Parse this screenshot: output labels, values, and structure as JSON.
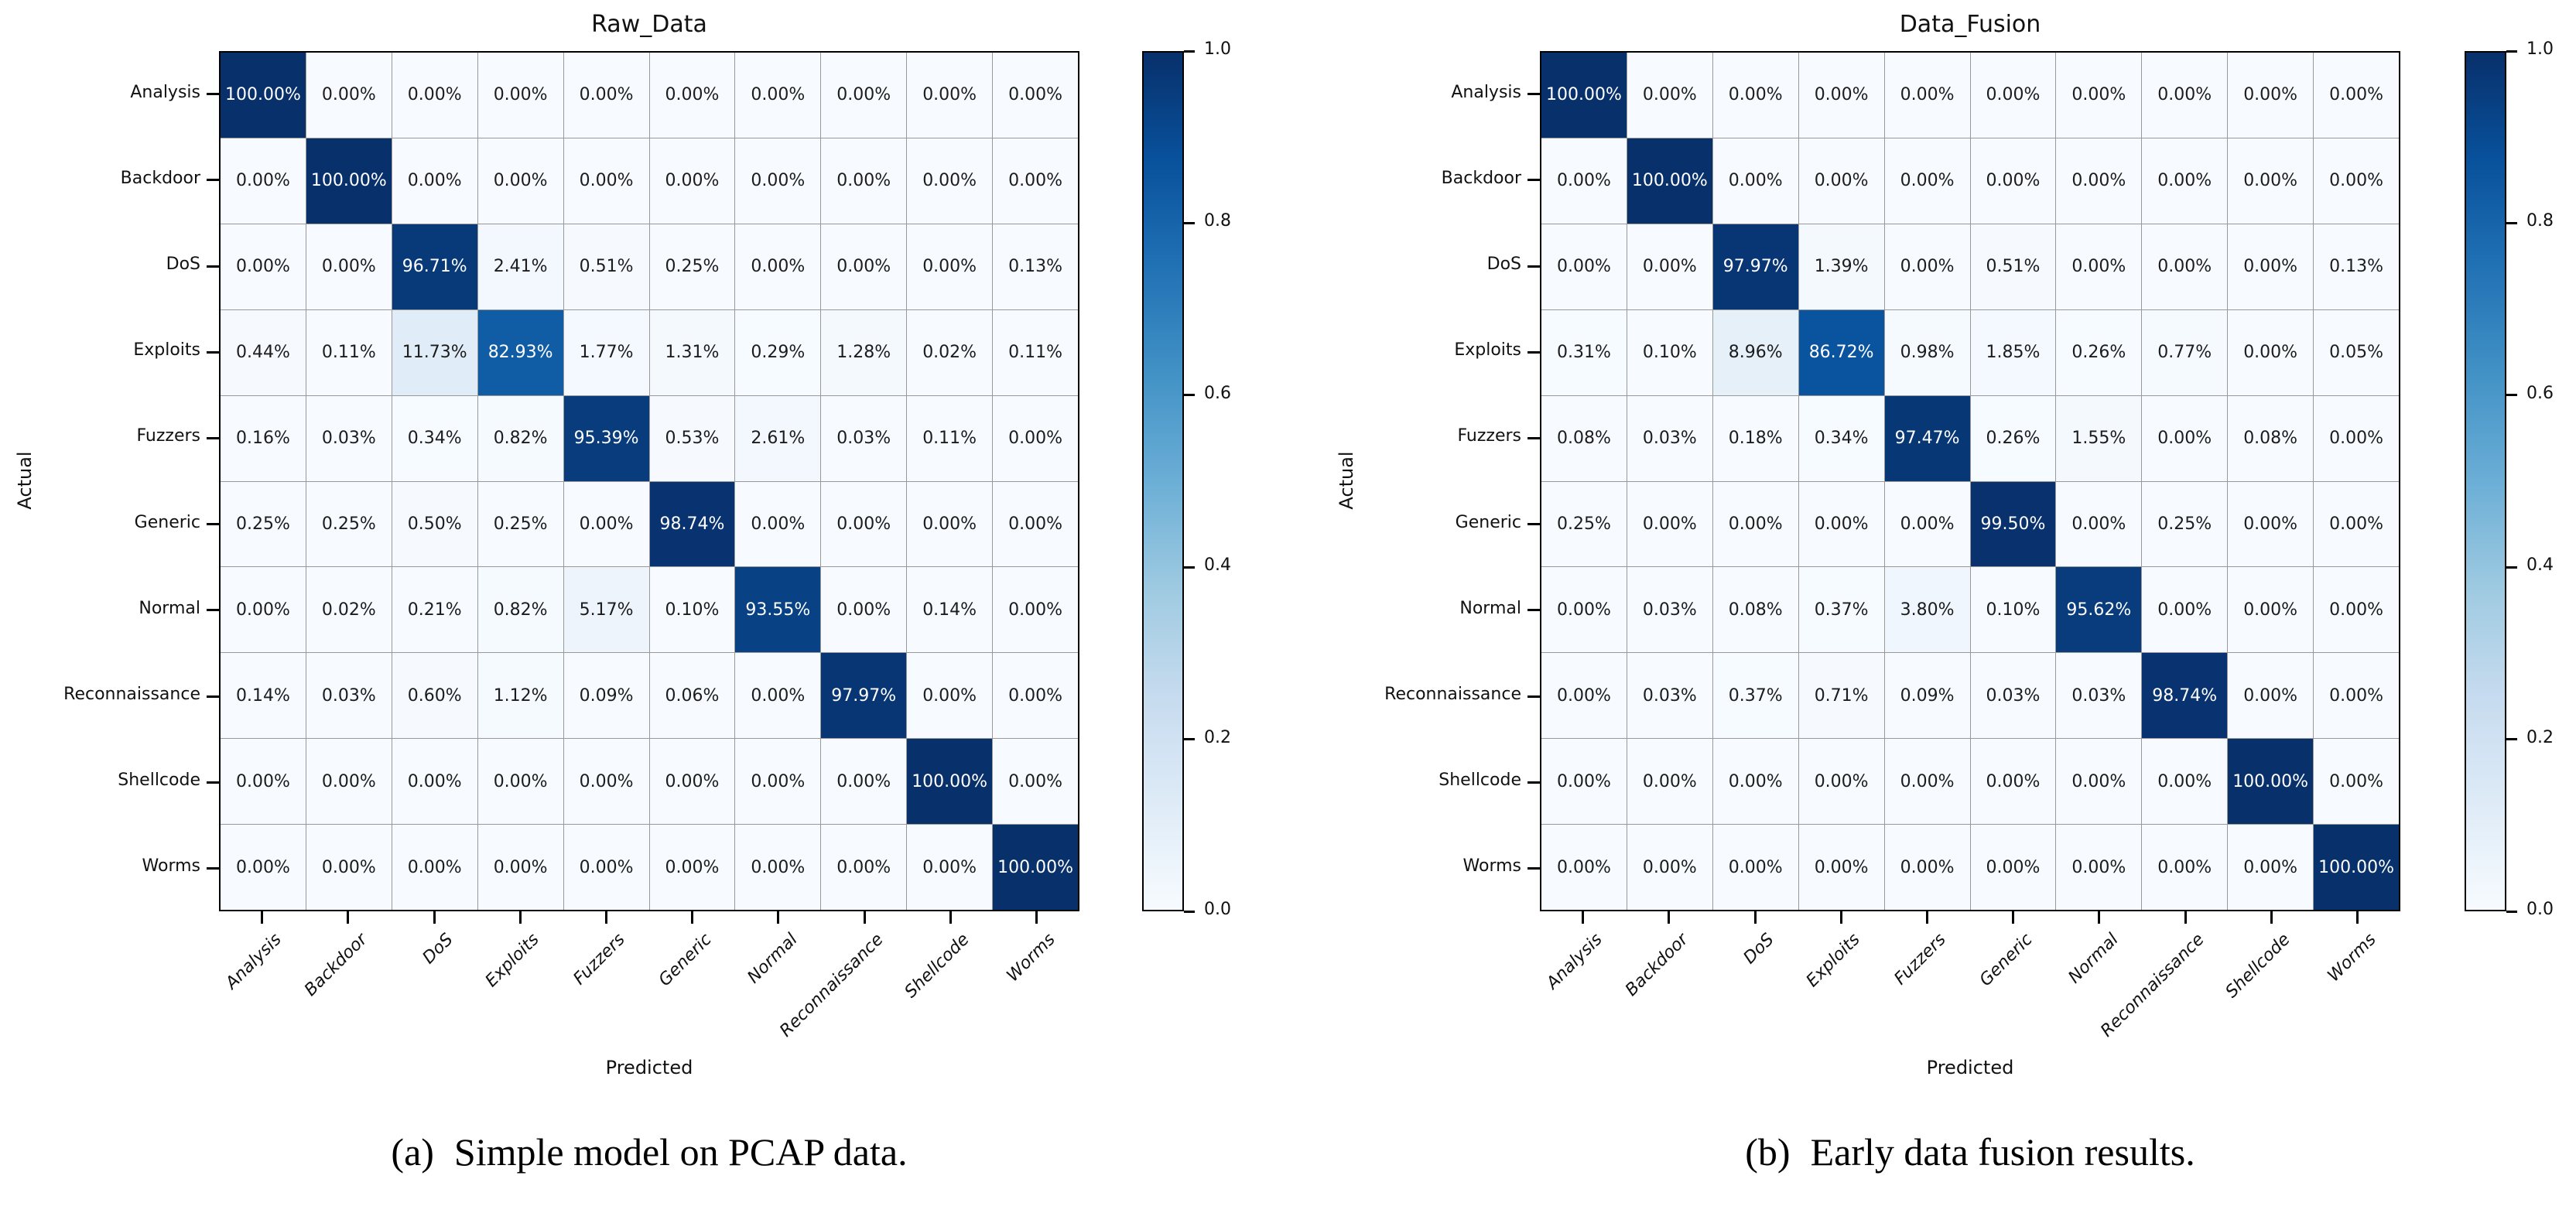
{
  "page": {
    "background": "#ffffff"
  },
  "chart_data": [
    {
      "type": "heatmap",
      "title": "Raw_Data",
      "xlabel": "Predicted",
      "ylabel": "Actual",
      "caption_label": "(a)",
      "caption_text": "Simple model on PCAP data.",
      "categories": [
        "Analysis",
        "Backdoor",
        "DoS",
        "Exploits",
        "Fuzzers",
        "Generic",
        "Normal",
        "Reconnaissance",
        "Shellcode",
        "Worms"
      ],
      "values_percent": [
        [
          100.0,
          0.0,
          0.0,
          0.0,
          0.0,
          0.0,
          0.0,
          0.0,
          0.0,
          0.0
        ],
        [
          0.0,
          100.0,
          0.0,
          0.0,
          0.0,
          0.0,
          0.0,
          0.0,
          0.0,
          0.0
        ],
        [
          0.0,
          0.0,
          96.71,
          2.41,
          0.51,
          0.25,
          0.0,
          0.0,
          0.0,
          0.13
        ],
        [
          0.44,
          0.11,
          11.73,
          82.93,
          1.77,
          1.31,
          0.29,
          1.28,
          0.02,
          0.11
        ],
        [
          0.16,
          0.03,
          0.34,
          0.82,
          95.39,
          0.53,
          2.61,
          0.03,
          0.11,
          0.0
        ],
        [
          0.25,
          0.25,
          0.5,
          0.25,
          0.0,
          98.74,
          0.0,
          0.0,
          0.0,
          0.0
        ],
        [
          0.0,
          0.02,
          0.21,
          0.82,
          5.17,
          0.1,
          93.55,
          0.0,
          0.14,
          0.0
        ],
        [
          0.14,
          0.03,
          0.6,
          1.12,
          0.09,
          0.06,
          0.0,
          97.97,
          0.0,
          0.0
        ],
        [
          0.0,
          0.0,
          0.0,
          0.0,
          0.0,
          0.0,
          0.0,
          0.0,
          100.0,
          0.0
        ],
        [
          0.0,
          0.0,
          0.0,
          0.0,
          0.0,
          0.0,
          0.0,
          0.0,
          0.0,
          100.0
        ]
      ],
      "value_format": "percent-2-decimals",
      "colormap": "Blues",
      "color_low": "#f7fbff",
      "color_high": "#08306b",
      "colorbar": {
        "position": "right",
        "range": [
          0,
          1
        ],
        "ticks": [
          "0.0",
          "0.2",
          "0.4",
          "0.6",
          "0.8",
          "1.0"
        ]
      },
      "grid": true,
      "legend_position": "none"
    },
    {
      "type": "heatmap",
      "title": "Data_Fusion",
      "xlabel": "Predicted",
      "ylabel": "Actual",
      "caption_label": "(b)",
      "caption_text": "Early data fusion results.",
      "categories": [
        "Analysis",
        "Backdoor",
        "DoS",
        "Exploits",
        "Fuzzers",
        "Generic",
        "Normal",
        "Reconnaissance",
        "Shellcode",
        "Worms"
      ],
      "values_percent": [
        [
          100.0,
          0.0,
          0.0,
          0.0,
          0.0,
          0.0,
          0.0,
          0.0,
          0.0,
          0.0
        ],
        [
          0.0,
          100.0,
          0.0,
          0.0,
          0.0,
          0.0,
          0.0,
          0.0,
          0.0,
          0.0
        ],
        [
          0.0,
          0.0,
          97.97,
          1.39,
          0.0,
          0.51,
          0.0,
          0.0,
          0.0,
          0.13
        ],
        [
          0.31,
          0.1,
          8.96,
          86.72,
          0.98,
          1.85,
          0.26,
          0.77,
          0.0,
          0.05
        ],
        [
          0.08,
          0.03,
          0.18,
          0.34,
          97.47,
          0.26,
          1.55,
          0.0,
          0.08,
          0.0
        ],
        [
          0.25,
          0.0,
          0.0,
          0.0,
          0.0,
          99.5,
          0.0,
          0.25,
          0.0,
          0.0
        ],
        [
          0.0,
          0.03,
          0.08,
          0.37,
          3.8,
          0.1,
          95.62,
          0.0,
          0.0,
          0.0
        ],
        [
          0.0,
          0.03,
          0.37,
          0.71,
          0.09,
          0.03,
          0.03,
          98.74,
          0.0,
          0.0
        ],
        [
          0.0,
          0.0,
          0.0,
          0.0,
          0.0,
          0.0,
          0.0,
          0.0,
          100.0,
          0.0
        ],
        [
          0.0,
          0.0,
          0.0,
          0.0,
          0.0,
          0.0,
          0.0,
          0.0,
          0.0,
          100.0
        ]
      ],
      "value_format": "percent-2-decimals",
      "colormap": "Blues",
      "color_low": "#f7fbff",
      "color_high": "#08306b",
      "colorbar": {
        "position": "right",
        "range": [
          0,
          1
        ],
        "ticks": [
          "0.0",
          "0.2",
          "0.4",
          "0.6",
          "0.8",
          "1.0"
        ]
      },
      "grid": true,
      "legend_position": "none"
    }
  ]
}
